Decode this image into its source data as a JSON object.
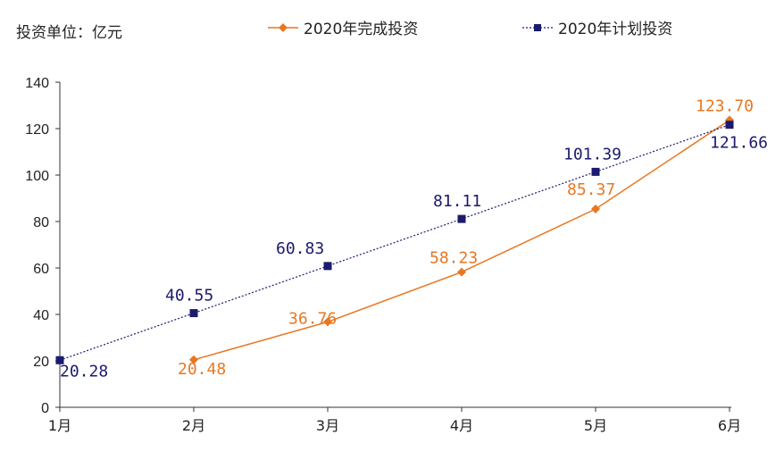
{
  "unit_label": "投资单位：亿元",
  "colors": {
    "actual": "#E87722",
    "planned": "#1B1B6E",
    "axis": "#333333"
  },
  "chart_data": {
    "type": "line",
    "categories": [
      "1月",
      "2月",
      "3月",
      "4月",
      "5月",
      "6月"
    ],
    "ylim": [
      0,
      140
    ],
    "yticks": [
      0,
      20,
      40,
      60,
      80,
      100,
      120,
      140
    ],
    "grid": false,
    "legend_position": "top",
    "series": [
      {
        "name": "2020年完成投资",
        "key": "actual",
        "style": "solid",
        "marker": "diamond",
        "values": [
          null,
          20.48,
          36.76,
          58.23,
          85.37,
          123.7
        ],
        "labels": [
          "",
          "20.48",
          "36.76",
          "58.23",
          "85.37",
          "123.70"
        ]
      },
      {
        "name": "2020年计划投资",
        "key": "planned",
        "style": "dotted",
        "marker": "square",
        "values": [
          20.28,
          40.55,
          60.83,
          81.11,
          101.39,
          121.66
        ],
        "labels": [
          "20.28",
          "40.55",
          "60.83",
          "81.11",
          "101.39",
          "121.66"
        ]
      }
    ]
  }
}
